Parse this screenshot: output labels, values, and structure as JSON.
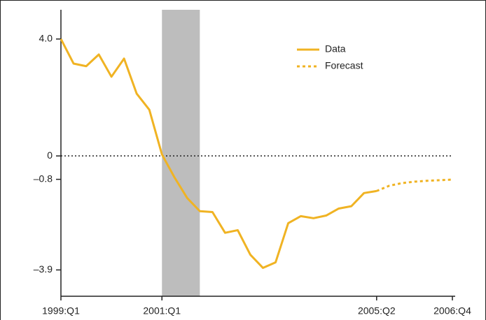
{
  "chart_data": {
    "type": "line",
    "categories": [
      "1999:Q1",
      null,
      null,
      null,
      null,
      null,
      null,
      null,
      "2001:Q1",
      null,
      null,
      null,
      null,
      null,
      null,
      null,
      null,
      null,
      null,
      null,
      null,
      null,
      null,
      null,
      null,
      "2005:Q2",
      null,
      null,
      null,
      null,
      null,
      "2006:Q4"
    ],
    "series": [
      {
        "name": "Data",
        "color": "#f0b323",
        "style": "solid",
        "values": [
          4.0,
          3.16,
          3.07,
          3.47,
          2.71,
          3.33,
          2.13,
          1.58,
          0.05,
          -0.74,
          -1.44,
          -1.89,
          -1.92,
          -2.63,
          -2.54,
          -3.38,
          -3.83,
          -3.64,
          -2.3,
          -2.06,
          -2.13,
          -2.04,
          -1.8,
          -1.72,
          -1.27,
          -1.2,
          null,
          null,
          null,
          null,
          null,
          null
        ]
      },
      {
        "name": "Forecast",
        "color": "#f0b323",
        "style": "dotted",
        "values": [
          null,
          null,
          null,
          null,
          null,
          null,
          null,
          null,
          null,
          null,
          null,
          null,
          null,
          null,
          null,
          null,
          null,
          null,
          null,
          null,
          null,
          null,
          null,
          null,
          null,
          -1.2,
          -1.02,
          -0.93,
          -0.88,
          -0.85,
          -0.83,
          -0.81
        ]
      }
    ],
    "ylim": [
      -4.8,
      5.0
    ],
    "yticks": [
      {
        "value": 4,
        "label": "4.0"
      },
      0,
      {
        "value": -0.8,
        "label": "–0.8"
      },
      {
        "value": -3.9,
        "label": "–3.9"
      }
    ],
    "reference_line": 0,
    "shade": {
      "from": 8,
      "to": 11,
      "color": "#bdbdbd"
    }
  }
}
